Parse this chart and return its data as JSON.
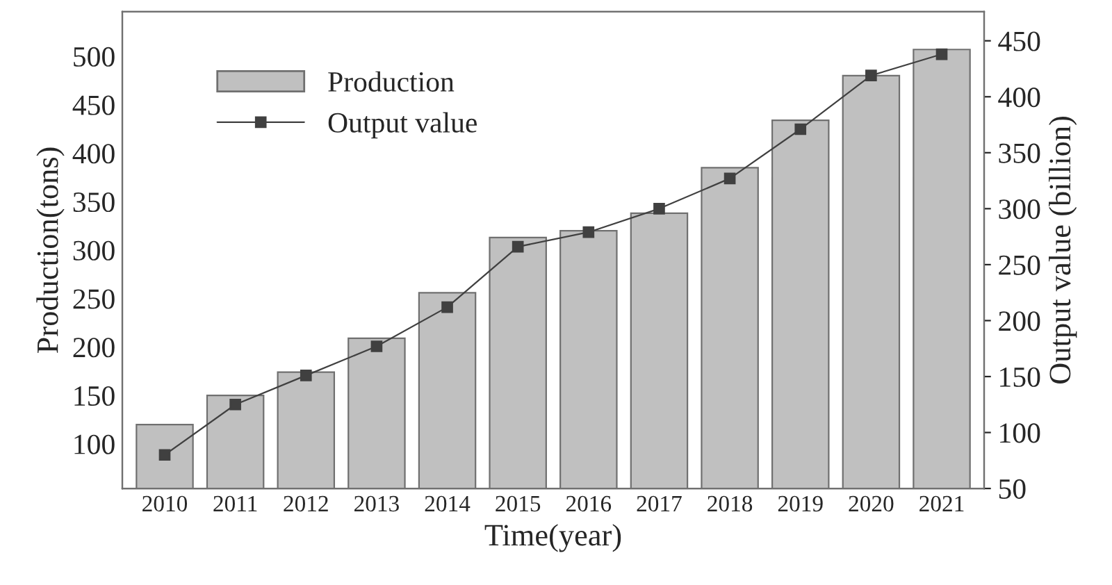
{
  "chart_data": {
    "type": "bar",
    "xlabel": "Time(year)",
    "ylabel": "Production(tons)",
    "y2label": "Output value (billion)",
    "categories": [
      "2010",
      "2011",
      "2012",
      "2013",
      "2014",
      "2015",
      "2016",
      "2017",
      "2018",
      "2019",
      "2020",
      "2021"
    ],
    "series": [
      {
        "name": "Production",
        "color": "#c0c0c0",
        "values": [
          120,
          150,
          174,
          209,
          256,
          313,
          320,
          338,
          385,
          434,
          480,
          507
        ]
      },
      {
        "name": "Output value",
        "type": "line",
        "axis": "y2",
        "color": "#404040",
        "marker": "square",
        "values": [
          80,
          125,
          151,
          177,
          212,
          266,
          279,
          300,
          327,
          371,
          419,
          438
        ]
      }
    ],
    "ylim": [
      54,
      546
    ],
    "yticks": [
      100,
      150,
      200,
      250,
      300,
      350,
      400,
      450,
      500
    ],
    "y2lim": [
      50,
      476
    ],
    "y2ticks": [
      50,
      100,
      150,
      200,
      250,
      300,
      350,
      400,
      450
    ],
    "legend": "top left",
    "grid": false
  }
}
